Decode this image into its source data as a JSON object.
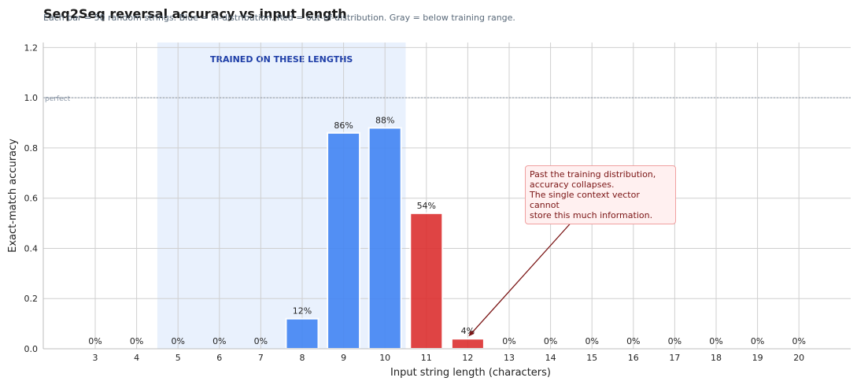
{
  "chart_data": {
    "type": "bar",
    "title": "Seq2Seq reversal accuracy vs input length",
    "subtitle": "Each bar = 50 random strings.  Blue = in-distribution.  Red = out-of-distribution.  Gray = below training range.",
    "xlabel": "Input string length (characters)",
    "ylabel": "Exact-match accuracy",
    "ylim": [
      0,
      1.22
    ],
    "yticks": [
      "0.0",
      "0.2",
      "0.4",
      "0.6",
      "0.8",
      "1.0",
      "1.2"
    ],
    "grid": true,
    "categories": [
      "3",
      "4",
      "5",
      "6",
      "7",
      "8",
      "9",
      "10",
      "11",
      "12",
      "13",
      "14",
      "15",
      "16",
      "17",
      "18",
      "19",
      "20"
    ],
    "values": [
      0,
      0,
      0,
      0,
      0,
      0.12,
      0.86,
      0.88,
      0.54,
      0.04,
      0,
      0,
      0,
      0,
      0,
      0,
      0,
      0
    ],
    "value_labels": [
      "0%",
      "0%",
      "0%",
      "0%",
      "0%",
      "12%",
      "86%",
      "88%",
      "54%",
      "4%",
      "0%",
      "0%",
      "0%",
      "0%",
      "0%",
      "0%",
      "0%",
      "0%"
    ],
    "groups": [
      "below",
      "below",
      "in",
      "in",
      "in",
      "in",
      "in",
      "in",
      "out",
      "out",
      "out",
      "out",
      "out",
      "out",
      "out",
      "out",
      "out",
      "out"
    ],
    "colors": {
      "in": "#4285f4",
      "out": "#dc3030",
      "below": "#9e9e9e",
      "band": "#dbe7fb",
      "band_text": "#1f3fa8"
    },
    "training_band": {
      "from": "5",
      "to": "10",
      "label": "TRAINED ON THESE LENGTHS"
    },
    "reference_line": {
      "y": 1.0,
      "label": "perfect"
    },
    "annotation": {
      "text": "Past the training distribution,\naccuracy collapses.\nThe single context vector cannot\nstore this much information.",
      "target": "12"
    }
  }
}
